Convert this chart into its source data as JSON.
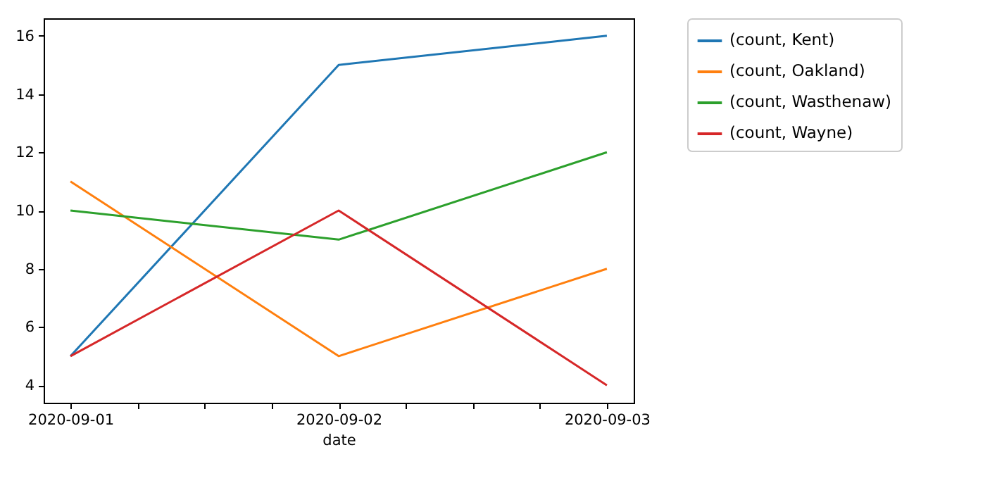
{
  "chart_data": {
    "type": "line",
    "xlabel": "date",
    "x": [
      "2020-09-01",
      "2020-09-02",
      "2020-09-03"
    ],
    "series": [
      {
        "name": "(count, Kent)",
        "color": "#1f77b4",
        "values": [
          5,
          15,
          16
        ]
      },
      {
        "name": "(count, Oakland)",
        "color": "#ff7f0e",
        "values": [
          11,
          5,
          8
        ]
      },
      {
        "name": "(count, Wasthenaw)",
        "color": "#2ca02c",
        "values": [
          10,
          9,
          12
        ]
      },
      {
        "name": "(count, Wayne)",
        "color": "#d62728",
        "values": [
          5,
          10,
          4
        ]
      }
    ],
    "xlim": [
      "2020-08-31T21:36",
      "2020-09-03T02:24"
    ],
    "xticks": [
      {
        "value": "2020-09-01",
        "label": "2020-09-01"
      },
      {
        "value": "2020-09-01T06:00",
        "label": null
      },
      {
        "value": "2020-09-01T12:00",
        "label": null
      },
      {
        "value": "2020-09-01T18:00",
        "label": null
      },
      {
        "value": "2020-09-02",
        "label": "2020-09-02"
      },
      {
        "value": "2020-09-02T06:00",
        "label": null
      },
      {
        "value": "2020-09-02T12:00",
        "label": null
      },
      {
        "value": "2020-09-02T18:00",
        "label": null
      },
      {
        "value": "2020-09-03",
        "label": "2020-09-03"
      }
    ],
    "ylim": [
      3.4,
      16.6
    ],
    "yticks": [
      4,
      6,
      8,
      10,
      12,
      14,
      16
    ],
    "grid": false,
    "legend": "top right",
    "line_style": "solid",
    "marker": "none"
  }
}
